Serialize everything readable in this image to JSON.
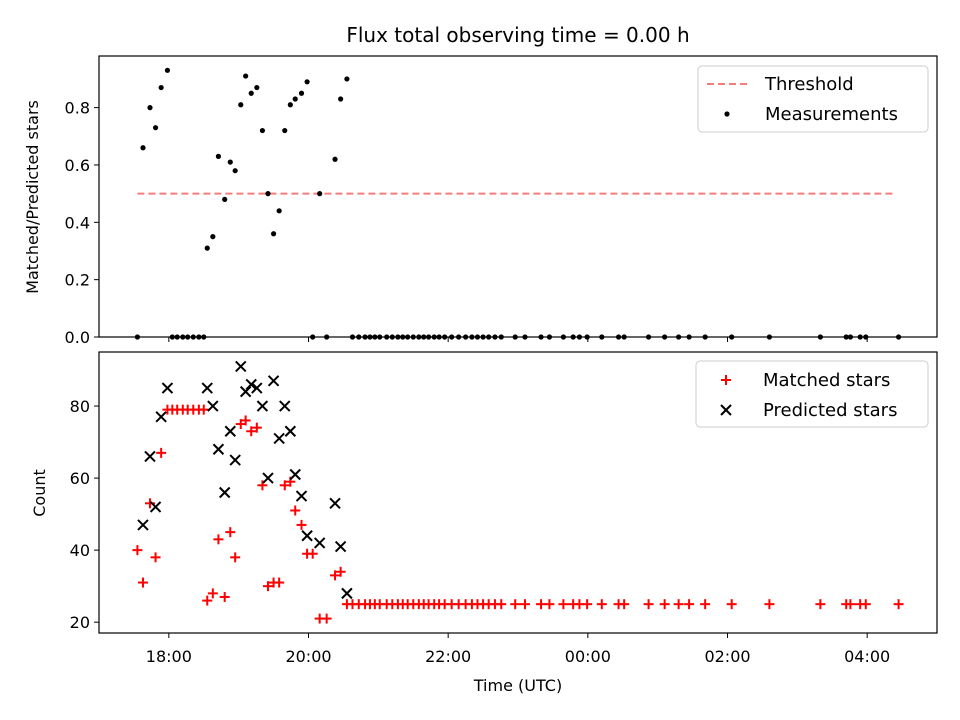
{
  "chart_data": [
    {
      "type": "scatter",
      "title": "Flux total observing time = 0.00 h",
      "xlabel": "",
      "ylabel": "Matched/Predicted stars",
      "x_unit": "hours after 18:00 UTC",
      "xlim": [
        -1.0,
        11.0
      ],
      "ylim": [
        0.0,
        0.98
      ],
      "yticks": [
        0.0,
        0.2,
        0.4,
        0.6,
        0.8
      ],
      "ytick_labels": [
        "0.0",
        "0.2",
        "0.4",
        "0.6",
        "0.8"
      ],
      "legend": {
        "position": "top-right",
        "entries": [
          "Threshold",
          "Measurements"
        ]
      },
      "threshold": {
        "name": "Threshold",
        "value": 0.5,
        "x": [
          -0.45,
          10.4
        ],
        "color": "#f77c7c"
      },
      "series": [
        {
          "name": "Measurements",
          "color": "#000000",
          "points": [
            [
              -0.45,
              0.0
            ],
            [
              -0.37,
              0.66
            ],
            [
              -0.27,
              0.8
            ],
            [
              -0.19,
              0.73
            ],
            [
              -0.11,
              0.87
            ],
            [
              -0.02,
              0.93
            ],
            [
              0.05,
              0.0
            ],
            [
              0.12,
              0.0
            ],
            [
              0.2,
              0.0
            ],
            [
              0.27,
              0.0
            ],
            [
              0.35,
              0.0
            ],
            [
              0.43,
              0.0
            ],
            [
              0.5,
              0.0
            ],
            [
              0.55,
              0.31
            ],
            [
              0.63,
              0.35
            ],
            [
              0.71,
              0.63
            ],
            [
              0.8,
              0.48
            ],
            [
              0.88,
              0.61
            ],
            [
              0.95,
              0.58
            ],
            [
              1.03,
              0.81
            ],
            [
              1.1,
              0.91
            ],
            [
              1.18,
              0.85
            ],
            [
              1.26,
              0.87
            ],
            [
              1.34,
              0.72
            ],
            [
              1.42,
              0.5
            ],
            [
              1.5,
              0.36
            ],
            [
              1.58,
              0.44
            ],
            [
              1.66,
              0.72
            ],
            [
              1.74,
              0.81
            ],
            [
              1.81,
              0.83
            ],
            [
              1.9,
              0.85
            ],
            [
              1.98,
              0.89
            ],
            [
              2.06,
              0.0
            ],
            [
              2.16,
              0.5
            ],
            [
              2.26,
              0.0
            ],
            [
              2.38,
              0.62
            ],
            [
              2.46,
              0.83
            ],
            [
              2.55,
              0.9
            ],
            [
              2.63,
              0.0
            ],
            [
              2.72,
              0.0
            ],
            [
              2.81,
              0.0
            ],
            [
              2.88,
              0.0
            ],
            [
              2.95,
              0.0
            ],
            [
              3.02,
              0.0
            ],
            [
              3.12,
              0.0
            ],
            [
              3.2,
              0.0
            ],
            [
              3.28,
              0.0
            ],
            [
              3.35,
              0.0
            ],
            [
              3.42,
              0.0
            ],
            [
              3.5,
              0.0
            ],
            [
              3.58,
              0.0
            ],
            [
              3.65,
              0.0
            ],
            [
              3.72,
              0.0
            ],
            [
              3.8,
              0.0
            ],
            [
              3.87,
              0.0
            ],
            [
              3.95,
              0.0
            ],
            [
              4.05,
              0.0
            ],
            [
              4.15,
              0.0
            ],
            [
              4.25,
              0.0
            ],
            [
              4.34,
              0.0
            ],
            [
              4.42,
              0.0
            ],
            [
              4.5,
              0.0
            ],
            [
              4.58,
              0.0
            ],
            [
              4.67,
              0.0
            ],
            [
              4.76,
              0.0
            ],
            [
              4.96,
              0.0
            ],
            [
              5.1,
              0.0
            ],
            [
              5.33,
              0.0
            ],
            [
              5.45,
              0.0
            ],
            [
              5.65,
              0.0
            ],
            [
              5.79,
              0.0
            ],
            [
              5.88,
              0.0
            ],
            [
              5.99,
              0.0
            ],
            [
              6.2,
              0.0
            ],
            [
              6.44,
              0.0
            ],
            [
              6.52,
              0.0
            ],
            [
              6.87,
              0.0
            ],
            [
              7.1,
              0.0
            ],
            [
              7.3,
              0.0
            ],
            [
              7.45,
              0.0
            ],
            [
              7.68,
              0.0
            ],
            [
              8.06,
              0.0
            ],
            [
              8.6,
              0.0
            ],
            [
              9.33,
              0.0
            ],
            [
              9.7,
              0.0
            ],
            [
              9.76,
              0.0
            ],
            [
              9.9,
              0.0
            ],
            [
              9.98,
              0.0
            ],
            [
              10.45,
              0.0
            ]
          ]
        }
      ]
    },
    {
      "type": "scatter",
      "title": "",
      "xlabel": "Time (UTC)",
      "ylabel": "Count",
      "x_unit": "hours after 18:00 UTC",
      "xlim": [
        -1.0,
        11.0
      ],
      "ylim": [
        17.0,
        95.0
      ],
      "xticks": [
        0,
        2,
        4,
        6,
        8,
        10
      ],
      "xtick_labels": [
        "18:00",
        "20:00",
        "22:00",
        "00:00",
        "02:00",
        "04:00"
      ],
      "yticks": [
        20,
        40,
        60,
        80
      ],
      "ytick_labels": [
        "20",
        "40",
        "60",
        "80"
      ],
      "legend": {
        "position": "top-right",
        "entries": [
          "Matched stars",
          "Predicted stars"
        ]
      },
      "series": [
        {
          "name": "Matched stars",
          "color": "#ff0000",
          "marker": "+",
          "points": [
            [
              -0.45,
              40
            ],
            [
              -0.37,
              31
            ],
            [
              -0.27,
              53
            ],
            [
              -0.19,
              38
            ],
            [
              -0.11,
              67
            ],
            [
              -0.02,
              79
            ],
            [
              0.05,
              79
            ],
            [
              0.12,
              79
            ],
            [
              0.2,
              79
            ],
            [
              0.27,
              79
            ],
            [
              0.35,
              79
            ],
            [
              0.43,
              79
            ],
            [
              0.5,
              79
            ],
            [
              0.55,
              26
            ],
            [
              0.63,
              28
            ],
            [
              0.71,
              43
            ],
            [
              0.8,
              27
            ],
            [
              0.88,
              45
            ],
            [
              0.95,
              38
            ],
            [
              1.03,
              75
            ],
            [
              1.1,
              76
            ],
            [
              1.18,
              73
            ],
            [
              1.26,
              74
            ],
            [
              1.34,
              58
            ],
            [
              1.42,
              30
            ],
            [
              1.5,
              31
            ],
            [
              1.58,
              31
            ],
            [
              1.66,
              58
            ],
            [
              1.74,
              59
            ],
            [
              1.81,
              51
            ],
            [
              1.9,
              47
            ],
            [
              1.98,
              39
            ],
            [
              2.06,
              39
            ],
            [
              2.16,
              21
            ],
            [
              2.26,
              21
            ],
            [
              2.38,
              33
            ],
            [
              2.46,
              34
            ],
            [
              2.55,
              25
            ],
            [
              2.63,
              25
            ],
            [
              2.72,
              25
            ],
            [
              2.81,
              25
            ],
            [
              2.88,
              25
            ],
            [
              2.95,
              25
            ],
            [
              3.02,
              25
            ],
            [
              3.12,
              25
            ],
            [
              3.2,
              25
            ],
            [
              3.28,
              25
            ],
            [
              3.35,
              25
            ],
            [
              3.42,
              25
            ],
            [
              3.5,
              25
            ],
            [
              3.58,
              25
            ],
            [
              3.65,
              25
            ],
            [
              3.72,
              25
            ],
            [
              3.8,
              25
            ],
            [
              3.87,
              25
            ],
            [
              3.95,
              25
            ],
            [
              4.05,
              25
            ],
            [
              4.15,
              25
            ],
            [
              4.25,
              25
            ],
            [
              4.34,
              25
            ],
            [
              4.42,
              25
            ],
            [
              4.5,
              25
            ],
            [
              4.58,
              25
            ],
            [
              4.67,
              25
            ],
            [
              4.76,
              25
            ],
            [
              4.96,
              25
            ],
            [
              5.1,
              25
            ],
            [
              5.33,
              25
            ],
            [
              5.45,
              25
            ],
            [
              5.65,
              25
            ],
            [
              5.79,
              25
            ],
            [
              5.88,
              25
            ],
            [
              5.99,
              25
            ],
            [
              6.2,
              25
            ],
            [
              6.44,
              25
            ],
            [
              6.52,
              25
            ],
            [
              6.87,
              25
            ],
            [
              7.1,
              25
            ],
            [
              7.3,
              25
            ],
            [
              7.45,
              25
            ],
            [
              7.68,
              25
            ],
            [
              8.06,
              25
            ],
            [
              8.6,
              25
            ],
            [
              9.33,
              25
            ],
            [
              9.7,
              25
            ],
            [
              9.76,
              25
            ],
            [
              9.9,
              25
            ],
            [
              9.98,
              25
            ],
            [
              10.45,
              25
            ]
          ]
        },
        {
          "name": "Predicted stars",
          "color": "#000000",
          "marker": "x",
          "points": [
            [
              -0.37,
              47
            ],
            [
              -0.27,
              66
            ],
            [
              -0.19,
              52
            ],
            [
              -0.11,
              77
            ],
            [
              -0.02,
              85
            ],
            [
              0.55,
              85
            ],
            [
              0.63,
              80
            ],
            [
              0.71,
              68
            ],
            [
              0.8,
              56
            ],
            [
              0.88,
              73
            ],
            [
              0.95,
              65
            ],
            [
              1.03,
              91
            ],
            [
              1.1,
              84
            ],
            [
              1.18,
              86
            ],
            [
              1.26,
              85
            ],
            [
              1.34,
              80
            ],
            [
              1.42,
              60
            ],
            [
              1.5,
              87
            ],
            [
              1.58,
              71
            ],
            [
              1.66,
              80
            ],
            [
              1.74,
              73
            ],
            [
              1.81,
              61
            ],
            [
              1.9,
              55
            ],
            [
              1.98,
              44
            ],
            [
              2.16,
              42
            ],
            [
              2.38,
              53
            ],
            [
              2.46,
              41
            ],
            [
              2.55,
              28
            ]
          ]
        }
      ]
    }
  ]
}
